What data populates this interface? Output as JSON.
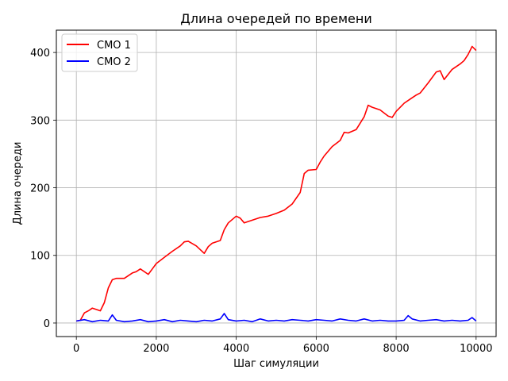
{
  "chart_data": {
    "type": "line",
    "title": "Длина очередей по времени",
    "xlabel": "Шаг симуляции",
    "ylabel": "Длина очереди",
    "xlim": [
      -500,
      10500
    ],
    "ylim": [
      -20,
      433
    ],
    "xticks": [
      0,
      2000,
      4000,
      6000,
      8000,
      10000
    ],
    "yticks": [
      0,
      100,
      200,
      300,
      400
    ],
    "grid": true,
    "legend_position": "top-left",
    "series": [
      {
        "name": "СМО 1",
        "color": "#ff0000",
        "x": [
          0,
          100,
          200,
          300,
          400,
          500,
          600,
          700,
          800,
          900,
          1000,
          1200,
          1400,
          1500,
          1600,
          1800,
          1900,
          2000,
          2200,
          2400,
          2600,
          2700,
          2800,
          3000,
          3200,
          3300,
          3400,
          3600,
          3700,
          3800,
          4000,
          4100,
          4200,
          4400,
          4600,
          4800,
          5000,
          5200,
          5400,
          5600,
          5700,
          5800,
          6000,
          6100,
          6200,
          6400,
          6600,
          6700,
          6800,
          7000,
          7200,
          7300,
          7400,
          7600,
          7800,
          7900,
          8000,
          8200,
          8400,
          8500,
          8600,
          8800,
          9000,
          9100,
          9200,
          9400,
          9600,
          9700,
          9800,
          9900,
          10000
        ],
        "y": [
          3,
          4,
          15,
          18,
          22,
          20,
          18,
          30,
          52,
          64,
          66,
          66,
          74,
          76,
          80,
          72,
          80,
          88,
          97,
          106,
          114,
          120,
          121,
          114,
          103,
          113,
          118,
          122,
          138,
          148,
          158,
          155,
          148,
          152,
          156,
          158,
          162,
          167,
          176,
          193,
          221,
          226,
          227,
          238,
          247,
          261,
          270,
          282,
          281,
          286,
          305,
          322,
          319,
          315,
          306,
          304,
          313,
          325,
          333,
          337,
          340,
          355,
          371,
          373,
          360,
          375,
          383,
          388,
          397,
          409,
          403
        ]
      },
      {
        "name": "СМО 2",
        "color": "#0000ff",
        "x": [
          0,
          200,
          400,
          600,
          800,
          900,
          1000,
          1200,
          1400,
          1600,
          1800,
          2000,
          2200,
          2400,
          2600,
          2800,
          3000,
          3200,
          3400,
          3600,
          3700,
          3800,
          4000,
          4200,
          4400,
          4600,
          4800,
          5000,
          5200,
          5400,
          5600,
          5800,
          6000,
          6200,
          6400,
          6600,
          6800,
          7000,
          7200,
          7400,
          7600,
          7800,
          8000,
          8200,
          8300,
          8400,
          8600,
          8800,
          9000,
          9200,
          9400,
          9600,
          9800,
          9900,
          10000
        ],
        "y": [
          3,
          5,
          2,
          4,
          3,
          12,
          4,
          2,
          3,
          5,
          2,
          3,
          5,
          2,
          4,
          3,
          2,
          4,
          3,
          6,
          14,
          5,
          3,
          4,
          2,
          6,
          3,
          4,
          3,
          5,
          4,
          3,
          5,
          4,
          3,
          6,
          4,
          3,
          6,
          3,
          4,
          3,
          3,
          4,
          11,
          6,
          3,
          4,
          5,
          3,
          4,
          3,
          4,
          8,
          3
        ]
      }
    ]
  }
}
